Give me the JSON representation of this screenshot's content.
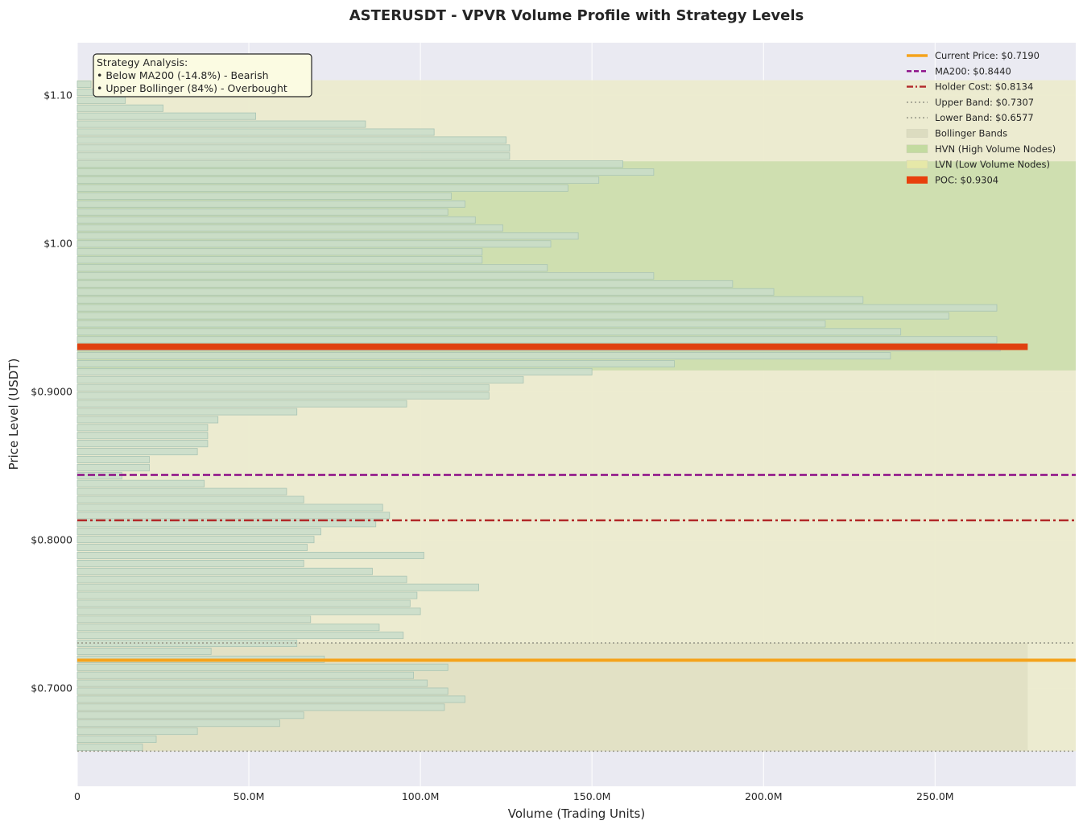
{
  "chart_data": {
    "type": "bar",
    "orientation": "horizontal",
    "title": "ASTERUSDT - VPVR Volume Profile with Strategy Levels",
    "xlabel": "Volume (Trading Units)",
    "ylabel": "Price Level (USDT)",
    "xlim": [
      0,
      291
    ],
    "ylim": [
      0.634,
      1.1355
    ],
    "x_unit": "M",
    "xticks": [
      {
        "value": 0,
        "label": "0"
      },
      {
        "value": 50,
        "label": "50.0M"
      },
      {
        "value": 100,
        "label": "100.0M"
      },
      {
        "value": 150,
        "label": "150.0M"
      },
      {
        "value": 200,
        "label": "200.0M"
      },
      {
        "value": 250,
        "label": "250.0M"
      }
    ],
    "yticks": [
      {
        "value": 0.7,
        "label": "$0.7000"
      },
      {
        "value": 0.8,
        "label": "$0.8000"
      },
      {
        "value": 0.9,
        "label": "$0.9000"
      },
      {
        "value": 1.0,
        "label": "$1.00"
      },
      {
        "value": 1.1,
        "label": "$1.10"
      }
    ],
    "grid": true,
    "legend_position": "top-right",
    "profile": {
      "price_low": 0.6577,
      "price_high": 1.1102,
      "bins": 84,
      "volumes_m": [
        19,
        23,
        35,
        59,
        66,
        107,
        113,
        108,
        102,
        98,
        108,
        72,
        39,
        64,
        95,
        88,
        68,
        100,
        97,
        99,
        117,
        96,
        86,
        66,
        101,
        67,
        69,
        71,
        87,
        91,
        89,
        66,
        61,
        37,
        13,
        21,
        21,
        35,
        38,
        38,
        38,
        41,
        64,
        96,
        120,
        120,
        130,
        150,
        174,
        237,
        269,
        268,
        240,
        218,
        254,
        268,
        229,
        203,
        191,
        168,
        137,
        118,
        118,
        138,
        146,
        124,
        116,
        108,
        113,
        109,
        143,
        152,
        168,
        159,
        126,
        126,
        125,
        104,
        84,
        52,
        25,
        14,
        7,
        4
      ]
    },
    "zones": {
      "bollinger": {
        "lower": 0.6577,
        "upper": 0.7307,
        "xmax": 277
      },
      "hvn": {
        "lower": 0.9145,
        "upper": 1.0555
      },
      "lvn": {
        "lower": 0.6577,
        "upper": 1.1102
      }
    },
    "levels": {
      "current_price": 0.719,
      "ma200": 0.844,
      "holder_cost": 0.8134,
      "upper_band": 0.7307,
      "lower_band": 0.6577,
      "poc": 0.9304,
      "poc_volume": 277
    },
    "legend": [
      {
        "label": "Current Price: $0.7190",
        "kind": "solid",
        "color": "#f5a31c"
      },
      {
        "label": "MA200: $0.8440",
        "kind": "dashed",
        "color": "#8b0b86"
      },
      {
        "label": "Holder Cost: $0.8134",
        "kind": "dashdot",
        "color": "#b22a2a"
      },
      {
        "label": "Upper Band: $0.7307",
        "kind": "dotted",
        "color": "#9a9a8a"
      },
      {
        "label": "Lower Band: $0.6577",
        "kind": "dotted",
        "color": "#9a9a8a"
      },
      {
        "label": "Bollinger Bands",
        "kind": "patch",
        "color": "#dcdcc0"
      },
      {
        "label": "HVN (High Volume Nodes)",
        "kind": "patch",
        "color": "#c3dba0"
      },
      {
        "label": "LVN (Low Volume Nodes)",
        "kind": "patch",
        "color": "#e6e8a8"
      },
      {
        "label": "POC: $0.9304",
        "kind": "thick",
        "color": "#e8400c"
      }
    ],
    "annotation": {
      "lines": [
        "Strategy Analysis:",
        "• Below MA200 (-14.8%) - Bearish",
        "• Upper Bollinger (84%) - Overbought"
      ]
    },
    "colors": {
      "plot_background": "#eaeaf2",
      "lvn_fill": "#ecebcd",
      "hvn_fill": "#cfdfb0",
      "bollinger_fill": "#e2e1c5",
      "bar_fill": "#c9ddca",
      "bar_edge": "#a9c4b4",
      "current_price": "#f5a31c",
      "ma200": "#8b0b86",
      "holder_cost": "#b22a2a",
      "band_line": "#9a9a8a",
      "poc": "#e0400f"
    }
  }
}
